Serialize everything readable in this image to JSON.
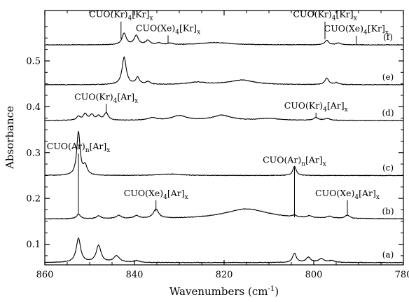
{
  "chart_data": {
    "type": "line",
    "title": "",
    "xlabel": "Wavenumbers (cm",
    "xlabel_sup": "-1",
    "xlabel_suffix": ")",
    "ylabel": "Absorbance",
    "xlim": [
      860,
      780
    ],
    "ylim": [
      0.055,
      0.61
    ],
    "x_ticks": [
      860,
      840,
      820,
      800,
      780
    ],
    "y_ticks": [
      0.1,
      0.2,
      0.3,
      0.4,
      0.5
    ],
    "series": [
      {
        "name": "(a)",
        "baseline": 0.06,
        "peaks": [
          [
            852.5,
            0.052,
            0.6
          ],
          [
            848.0,
            0.037,
            0.65
          ],
          [
            844.0,
            0.014,
            0.8
          ],
          [
            839.5,
            0.004,
            0.7
          ],
          [
            804.3,
            0.02,
            0.5
          ],
          [
            801.2,
            0.011,
            0.6
          ],
          [
            798.3,
            0.008,
            0.8
          ],
          [
            796.0,
            0.004,
            0.7
          ]
        ]
      },
      {
        "name": "(b)",
        "baseline": 0.155,
        "peaks": [
          [
            852.5,
            0.01,
            0.5
          ],
          [
            848.0,
            0.006,
            0.6
          ],
          [
            843.5,
            0.007,
            0.7
          ],
          [
            839.5,
            0.006,
            0.7
          ],
          [
            835.2,
            0.02,
            0.7
          ],
          [
            815.0,
            0.022,
            6.0
          ],
          [
            804.3,
            0.004,
            0.5
          ],
          [
            801.0,
            0.004,
            0.6
          ],
          [
            796.5,
            0.004,
            0.7
          ],
          [
            792.5,
            0.007,
            0.6
          ]
        ]
      },
      {
        "name": "(c)",
        "baseline": 0.25,
        "peaks": [
          [
            852.5,
            0.095,
            0.45
          ],
          [
            851.0,
            0.02,
            0.5
          ],
          [
            832.0,
            0.003,
            3.0
          ],
          [
            804.3,
            0.02,
            0.45
          ]
        ]
      },
      {
        "name": "(d)",
        "baseline": 0.37,
        "peaks": [
          [
            852.5,
            0.008,
            0.5
          ],
          [
            851.0,
            0.014,
            0.5
          ],
          [
            849.5,
            0.012,
            0.5
          ],
          [
            848.0,
            0.009,
            0.5
          ],
          [
            846.3,
            0.016,
            0.55
          ],
          [
            836.0,
            0.005,
            1.2
          ],
          [
            830.0,
            0.01,
            2.0
          ],
          [
            820.5,
            0.011,
            2.5
          ],
          [
            810.0,
            0.004,
            3.0
          ],
          [
            799.5,
            0.006,
            0.6
          ],
          [
            797.0,
            0.004,
            0.7
          ]
        ]
      },
      {
        "name": "(e)",
        "baseline": 0.448,
        "peaks": [
          [
            842.3,
            0.06,
            0.55
          ],
          [
            839.3,
            0.015,
            0.5
          ],
          [
            837.0,
            0.006,
            0.6
          ],
          [
            826.0,
            0.005,
            2.5
          ],
          [
            816.0,
            0.01,
            3.5
          ],
          [
            797.1,
            0.014,
            0.5
          ],
          [
            795.0,
            0.004,
            0.6
          ]
        ]
      },
      {
        "name": "(f)",
        "baseline": 0.535,
        "peaks": [
          [
            842.3,
            0.025,
            0.55
          ],
          [
            839.6,
            0.02,
            0.55
          ],
          [
            837.0,
            0.009,
            0.6
          ],
          [
            834.5,
            0.004,
            0.6
          ],
          [
            832.0,
            0.003,
            0.6
          ],
          [
            822.0,
            0.005,
            4.0
          ],
          [
            797.1,
            0.01,
            0.5
          ],
          [
            794.5,
            0.004,
            0.6
          ]
        ]
      }
    ],
    "annotations": [
      {
        "base": "CUO(Kr)",
        "sub1": "4",
        "mid": "[Kr]",
        "sub2": "x",
        "x": 843.0,
        "line_y": [
          0.548,
          0.586
        ]
      },
      {
        "base": "CUO(Xe)",
        "sub1": "4",
        "mid": "[Kr]",
        "sub2": "x",
        "x": 832.5,
        "line_y": [
          0.538,
          0.556
        ]
      },
      {
        "base": "CUO(Kr)",
        "sub1": "4",
        "mid": "[Kr]",
        "sub2": "x",
        "x": 797.5,
        "line_y": [
          0.547,
          0.586
        ]
      },
      {
        "base": "CUO(Xe)",
        "sub1": "4",
        "mid": "[Kr]",
        "sub2": "x",
        "x": 790.5,
        "line_y": [
          0.536,
          0.555
        ]
      },
      {
        "base": "CUO(Kr)",
        "sub1": "4",
        "mid": "[Ar]",
        "sub2": "x",
        "x": 846.3,
        "line_y": [
          0.386,
          0.406
        ]
      },
      {
        "base": "CUO(Kr)",
        "sub1": "4",
        "mid": "[Ar]",
        "sub2": "x",
        "x": 799.5,
        "line_y": [
          0.376,
          0.387
        ]
      },
      {
        "base": "CUO(Ar)",
        "sub1": "n",
        "mid": "[Ar]",
        "sub2": "x",
        "x": 852.5,
        "line_y": [
          0.165,
          0.298
        ]
      },
      {
        "base": "CUO(Xe)",
        "sub1": "4",
        "mid": "[Ar]",
        "sub2": "x",
        "x": 835.2,
        "line_y": [
          0.172,
          0.196
        ]
      },
      {
        "base": "CUO(Ar)",
        "sub1": "n",
        "mid": "[Ar]",
        "sub2": "x",
        "x": 804.3,
        "line_y": [
          0.159,
          0.268
        ]
      },
      {
        "base": "CUO(Xe)",
        "sub1": "4",
        "mid": "[Ar]",
        "sub2": "x",
        "x": 792.5,
        "line_y": [
          0.162,
          0.196
        ]
      }
    ]
  }
}
